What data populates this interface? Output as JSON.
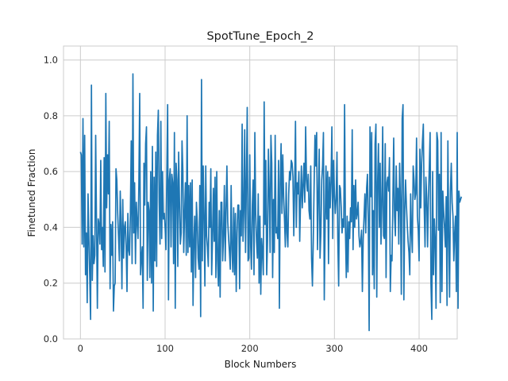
{
  "chart_data": {
    "type": "line",
    "title": "SpotTune_Epoch_2",
    "xlabel": "Block Numbers",
    "ylabel": "Finetuned Fraction",
    "xlim": [
      -20,
      445
    ],
    "ylim": [
      0.0,
      1.05
    ],
    "xticks": [
      0,
      100,
      200,
      300,
      400
    ],
    "yticks": [
      0.0,
      0.2,
      0.4,
      0.6,
      0.8,
      1.0
    ],
    "xtick_labels": [
      "0",
      "100",
      "200",
      "300",
      "400"
    ],
    "ytick_labels": [
      "0.0",
      "0.2",
      "0.4",
      "0.6",
      "0.8",
      "1.0"
    ],
    "grid": true,
    "line_color": "#1f77b4",
    "series": [
      {
        "x_start": 0,
        "x_step": 1,
        "values": [
          0.67,
          0.66,
          0.34,
          0.79,
          0.33,
          0.73,
          0.23,
          0.38,
          0.13,
          0.52,
          0.36,
          0.22,
          0.07,
          0.91,
          0.21,
          0.37,
          0.27,
          0.3,
          0.73,
          0.41,
          0.11,
          0.43,
          0.41,
          0.34,
          0.64,
          0.32,
          0.4,
          0.26,
          0.65,
          0.24,
          0.88,
          0.47,
          0.66,
          0.52,
          0.78,
          0.18,
          0.41,
          0.3,
          0.42,
          0.1,
          0.19,
          0.2,
          0.61,
          0.57,
          0.45,
          0.37,
          0.28,
          0.53,
          0.41,
          0.18,
          0.5,
          0.29,
          0.4,
          0.42,
          0.33,
          0.17,
          0.45,
          0.32,
          0.3,
          0.45,
          0.71,
          0.27,
          0.95,
          0.38,
          0.56,
          0.27,
          0.49,
          0.42,
          0.36,
          0.55,
          0.88,
          0.23,
          0.29,
          0.33,
          0.11,
          0.63,
          0.48,
          0.7,
          0.76,
          0.21,
          0.49,
          0.46,
          0.22,
          0.6,
          0.2,
          0.69,
          0.1,
          0.58,
          0.28,
          0.67,
          0.26,
          0.73,
          0.82,
          0.49,
          0.34,
          0.78,
          0.36,
          0.6,
          0.43,
          0.45,
          0.4,
          0.32,
          0.58,
          0.84,
          0.14,
          0.57,
          0.61,
          0.33,
          0.59,
          0.56,
          0.27,
          0.74,
          0.11,
          0.63,
          0.57,
          0.26,
          0.67,
          0.49,
          0.34,
          0.38,
          0.71,
          0.6,
          0.31,
          0.45,
          0.56,
          0.3,
          0.8,
          0.31,
          0.55,
          0.33,
          0.56,
          0.24,
          0.57,
          0.12,
          0.35,
          0.44,
          0.22,
          0.49,
          0.42,
          0.29,
          0.25,
          0.55,
          0.08,
          0.93,
          0.28,
          0.62,
          0.44,
          0.19,
          0.62,
          0.37,
          0.33,
          0.26,
          0.49,
          0.4,
          0.61,
          0.23,
          0.36,
          0.54,
          0.35,
          0.58,
          0.22,
          0.6,
          0.28,
          0.19,
          0.46,
          0.15,
          0.49,
          0.49,
          0.28,
          0.37,
          0.55,
          0.28,
          0.46,
          0.62,
          0.42,
          0.36,
          0.31,
          0.25,
          0.55,
          0.32,
          0.24,
          0.47,
          0.23,
          0.45,
          0.17,
          0.38,
          0.48,
          0.48,
          0.18,
          0.46,
          0.37,
          0.77,
          0.35,
          0.46,
          0.75,
          0.31,
          0.56,
          0.83,
          0.28,
          0.29,
          0.66,
          0.34,
          0.25,
          0.48,
          0.57,
          0.23,
          0.74,
          0.45,
          0.35,
          0.29,
          0.52,
          0.2,
          0.44,
          0.16,
          0.36,
          0.31,
          0.23,
          0.85,
          0.41,
          0.64,
          0.23,
          0.35,
          0.68,
          0.53,
          0.31,
          0.73,
          0.63,
          0.22,
          0.5,
          0.31,
          0.73,
          0.38,
          0.4,
          0.36,
          0.64,
          0.11,
          0.56,
          0.7,
          0.45,
          0.66,
          0.51,
          0.43,
          0.33,
          0.56,
          0.38,
          0.33,
          0.52,
          0.6,
          0.57,
          0.64,
          0.63,
          0.58,
          0.37,
          0.54,
          0.78,
          0.4,
          0.56,
          0.52,
          0.6,
          0.35,
          0.5,
          0.62,
          0.47,
          0.55,
          0.63,
          0.49,
          0.76,
          0.57,
          0.53,
          0.59,
          0.46,
          0.43,
          0.62,
          0.29,
          0.19,
          0.35,
          0.55,
          0.73,
          0.62,
          0.74,
          0.32,
          0.51,
          0.68,
          0.29,
          0.38,
          0.57,
          0.62,
          0.74,
          0.14,
          0.4,
          0.62,
          0.43,
          0.6,
          0.27,
          0.58,
          0.47,
          0.57,
          0.76,
          0.36,
          0.64,
          0.52,
          0.45,
          0.5,
          0.67,
          0.35,
          0.19,
          0.55,
          0.54,
          0.47,
          0.38,
          0.43,
          0.4,
          0.84,
          0.39,
          0.22,
          0.44,
          0.24,
          0.42,
          0.36,
          0.47,
          0.42,
          0.75,
          0.32,
          0.55,
          0.4,
          0.57,
          0.43,
          0.45,
          0.49,
          0.37,
          0.33,
          0.35,
          0.39,
          0.17,
          0.36,
          0.44,
          0.52,
          0.38,
          0.54,
          0.59,
          0.42,
          0.03,
          0.76,
          0.51,
          0.74,
          0.23,
          0.46,
          0.18,
          0.7,
          0.77,
          0.15,
          0.56,
          0.7,
          0.4,
          0.63,
          0.34,
          0.48,
          0.76,
          0.37,
          0.36,
          0.7,
          0.22,
          0.56,
          0.58,
          0.53,
          0.65,
          0.17,
          0.3,
          0.28,
          0.49,
          0.72,
          0.44,
          0.37,
          0.62,
          0.46,
          0.54,
          0.34,
          0.63,
          0.49,
          0.16,
          0.79,
          0.84,
          0.14,
          0.46,
          0.57,
          0.48,
          0.41,
          0.35,
          0.31,
          0.23,
          0.52,
          0.39,
          0.31,
          0.62,
          0.57,
          0.5,
          0.52,
          0.72,
          0.44,
          0.39,
          0.28,
          0.68,
          0.47,
          0.63,
          0.71,
          0.77,
          0.48,
          0.33,
          0.58,
          0.51,
          0.33,
          0.5,
          0.61,
          0.74,
          0.2,
          0.07,
          0.6,
          0.23,
          0.43,
          0.35,
          0.11,
          0.74,
          0.71,
          0.39,
          0.59,
          0.13,
          0.74,
          0.17,
          0.53,
          0.46,
          0.4,
          0.33,
          0.51,
          0.12,
          0.71,
          0.37,
          0.15,
          0.53,
          0.63,
          0.49,
          0.44,
          0.28,
          0.38,
          0.44,
          0.17,
          0.74,
          0.11,
          0.53,
          0.49,
          0.5,
          0.51
        ]
      }
    ]
  }
}
